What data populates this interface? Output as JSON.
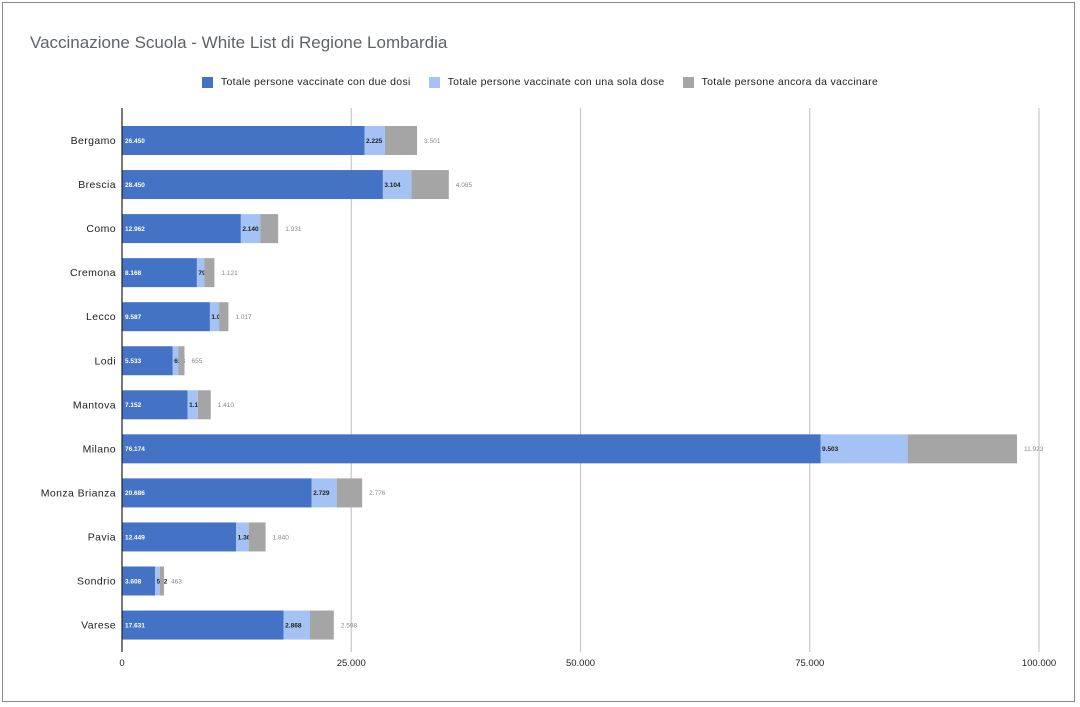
{
  "chart_data": {
    "type": "bar",
    "orientation": "horizontal",
    "stacked": true,
    "title": "Vaccinazione Scuola - White List di Regione Lombardia",
    "categories": [
      "Bergamo",
      "Brescia",
      "Como",
      "Cremona",
      "Lecco",
      "Lodi",
      "Mantova",
      "Milano",
      "Monza Brianza",
      "Pavia",
      "Sondrio",
      "Varese"
    ],
    "series": [
      {
        "name": "Totale persone vaccinate con due dosi",
        "color": "#4472c4",
        "values": [
          26450,
          28450,
          12962,
          8168,
          9587,
          5533,
          7152,
          76174,
          20686,
          12449,
          3608,
          17631
        ],
        "labels": [
          "26.450",
          "28.450",
          "12.962",
          "8.168",
          "9.587",
          "5.533",
          "7.152",
          "76.174",
          "20.686",
          "12.449",
          "3.608",
          "17.631"
        ]
      },
      {
        "name": "Totale persone vaccinate con una sola dose",
        "color": "#a4c2f4",
        "values": [
          2225,
          3104,
          2140,
          791,
          1000,
          628,
          1114,
          9503,
          2729,
          1367,
          512,
          2868
        ],
        "labels": [
          "2.225",
          "3.104",
          "2.140",
          "791",
          "1.000",
          "628",
          "1.114",
          "9.503",
          "2.729",
          "1.367",
          "512",
          "2.868"
        ]
      },
      {
        "name": "Totale persone ancora da vaccinare",
        "color": "#a5a5a5",
        "values": [
          3501,
          4085,
          1931,
          1121,
          1017,
          655,
          1410,
          11923,
          2776,
          1840,
          463,
          2598
        ],
        "labels": [
          "3.501",
          "4.085",
          "1.931",
          "1.121",
          "1.017",
          "655",
          "1.410",
          "11.923",
          "2.776",
          "1.840",
          "463",
          "2.598"
        ]
      }
    ],
    "xlim": [
      0,
      100000
    ],
    "xticks": [
      0,
      25000,
      50000,
      75000,
      100000
    ],
    "xtick_labels": [
      "0",
      "25.000",
      "50.000",
      "75.000",
      "100.000"
    ],
    "grid": true,
    "legend_position": "top-center"
  }
}
